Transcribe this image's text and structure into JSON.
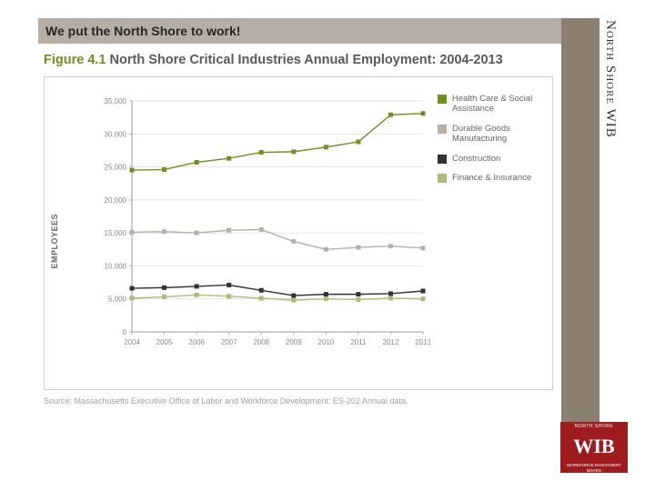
{
  "header": {
    "text": "We put the North Shore to work!",
    "bg": "#b6aea4"
  },
  "side": {
    "label": "North Shore WIB",
    "band_bg": "#8a7f71"
  },
  "figure": {
    "number": "Figure 4.1",
    "title": "North Shore Critical Industries Annual Employment: 2004-2013",
    "accent": "#6f8f1e"
  },
  "chart": {
    "type": "line",
    "ylabel": "EMPLOYEES",
    "xlim": [
      2004,
      2013
    ],
    "ylim": [
      0,
      35000
    ],
    "ytick_step": 5000,
    "yticks": [
      "0",
      "5,000",
      "10,000",
      "15,000",
      "20,000",
      "25,000",
      "30,000",
      "35,000"
    ],
    "xticks": [
      "2004",
      "2005",
      "2006",
      "2007",
      "2008",
      "2009",
      "2010",
      "2011",
      "2012",
      "2013"
    ],
    "grid_color": "#d9d9d9",
    "axis_color": "#9e9e9e",
    "tick_font_size": 8,
    "marker_size": 5,
    "line_width": 1.4,
    "series": [
      {
        "name": "Health Care & Social Assistance",
        "color": "#6f8f1e",
        "marker": "square",
        "values": [
          24500,
          24600,
          25700,
          26300,
          27200,
          27300,
          28000,
          28800,
          32900,
          33100
        ]
      },
      {
        "name": "Durable Goods Manufacturing",
        "color": "#b6b0a6",
        "marker": "square",
        "values": [
          15100,
          15200,
          15000,
          15400,
          15500,
          13700,
          12500,
          12800,
          13000,
          12700
        ]
      },
      {
        "name": "Construction",
        "color": "#333333",
        "marker": "square",
        "values": [
          6600,
          6700,
          6900,
          7100,
          6300,
          5500,
          5700,
          5700,
          5800,
          6200
        ]
      },
      {
        "name": "Finance & Insurance",
        "color": "#a9bd77",
        "marker": "square",
        "values": [
          5100,
          5300,
          5600,
          5400,
          5100,
          4800,
          5000,
          4900,
          5100,
          5000
        ]
      }
    ]
  },
  "source": "Source: Massachusetts Executive Office of Labor and Workforce Development: ES-202 Annual data.",
  "logo": {
    "top": "NORTH SHORE",
    "mid": "WIB",
    "bot": "WORKFORCE INVESTMENT BOARD",
    "red": "#9e1b1e"
  }
}
